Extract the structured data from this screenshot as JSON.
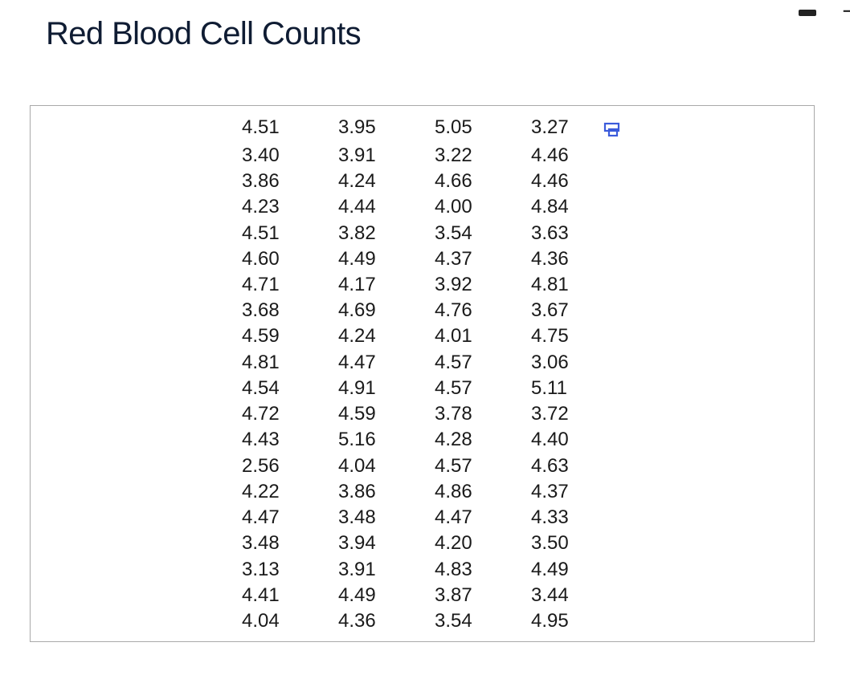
{
  "page": {
    "title": "Red Blood Cell Counts"
  },
  "window_controls": {
    "control_2_glyph": "∹"
  },
  "table": {
    "copy_icon": "copy-to-clipboard-icon",
    "accent_color": "#3b5bdb",
    "columns": [
      [
        "4.51",
        "3.40",
        "3.86",
        "4.23",
        "4.51",
        "4.60",
        "4.71",
        "3.68",
        "4.59",
        "4.81",
        "4.54",
        "4.72",
        "4.43",
        "2.56",
        "4.22",
        "4.47",
        "3.48",
        "3.13",
        "4.41",
        "4.04"
      ],
      [
        "3.95",
        "3.91",
        "4.24",
        "4.44",
        "3.82",
        "4.49",
        "4.17",
        "4.69",
        "4.24",
        "4.47",
        "4.91",
        "4.59",
        "5.16",
        "4.04",
        "3.86",
        "3.48",
        "3.94",
        "3.91",
        "4.49",
        "4.36"
      ],
      [
        "5.05",
        "3.22",
        "4.66",
        "4.00",
        "3.54",
        "4.37",
        "3.92",
        "4.76",
        "4.01",
        "4.57",
        "4.57",
        "3.78",
        "4.28",
        "4.57",
        "4.86",
        "4.47",
        "4.20",
        "4.83",
        "3.87",
        "3.54"
      ],
      [
        "3.27",
        "4.46",
        "4.46",
        "4.84",
        "3.63",
        "4.36",
        "4.81",
        "3.67",
        "4.75",
        "3.06",
        "5.11",
        "3.72",
        "4.40",
        "4.63",
        "4.37",
        "4.33",
        "3.50",
        "4.49",
        "3.44",
        "4.95"
      ]
    ]
  }
}
